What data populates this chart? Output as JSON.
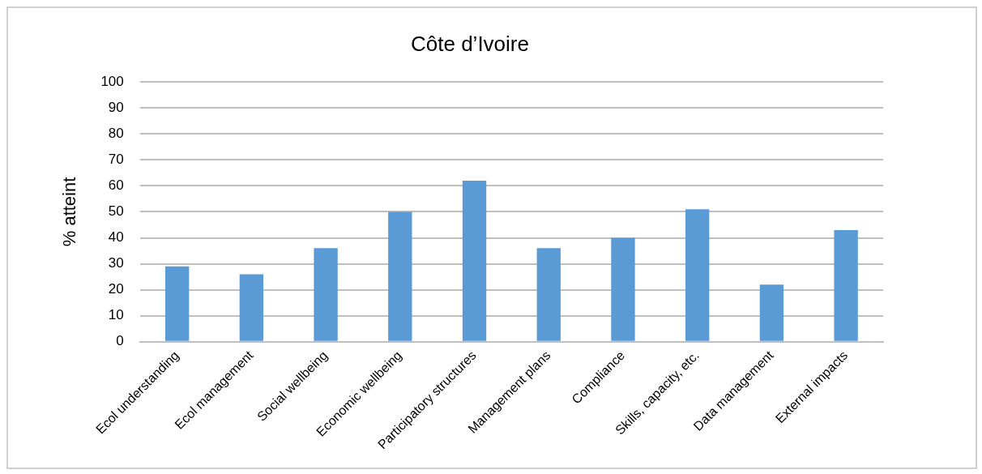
{
  "chart_data": {
    "type": "bar",
    "title": "Côte d’Ivoire",
    "ylabel": "% atteint",
    "categories": [
      "Ecol understanding",
      "Ecol management",
      "Social wellbeing",
      "Economic wellbeing",
      "Participatory structures",
      "Management plans",
      "Compliance",
      "Skills, capacity, etc.",
      "Data management",
      "External impacts"
    ],
    "values": [
      29,
      26,
      36,
      50,
      62,
      36,
      40,
      51,
      22,
      43
    ],
    "color": "#5b9bd5",
    "ylim": [
      0,
      100
    ],
    "yticks": [
      0,
      10,
      20,
      30,
      40,
      50,
      60,
      70,
      80,
      90,
      100
    ],
    "grid": "y",
    "legend": false
  }
}
